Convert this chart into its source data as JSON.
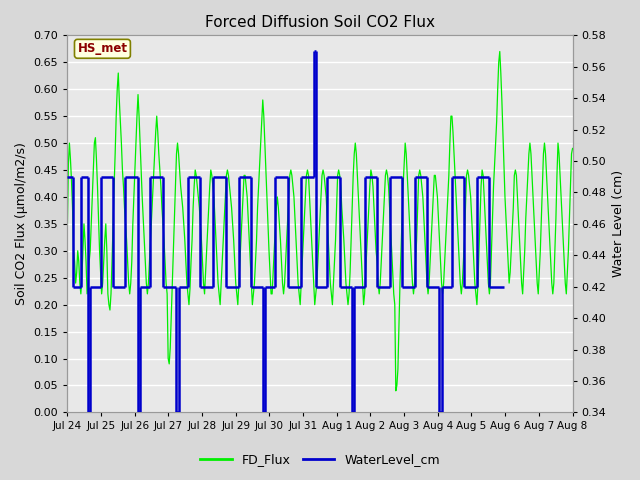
{
  "title": "Forced Diffusion Soil CO2 Flux",
  "ylabel_left": "Soil CO2 Flux (μmol/m2/s)",
  "ylabel_right": "Water Level (cm)",
  "annotation_text": "HS_met",
  "ylim_left": [
    0.0,
    0.7
  ],
  "ylim_right": [
    0.34,
    0.58
  ],
  "yticks_left": [
    0.0,
    0.05,
    0.1,
    0.15,
    0.2,
    0.25,
    0.3,
    0.35,
    0.4,
    0.45,
    0.5,
    0.55,
    0.6,
    0.65,
    0.7
  ],
  "yticks_right": [
    0.34,
    0.36,
    0.38,
    0.4,
    0.42,
    0.44,
    0.46,
    0.48,
    0.5,
    0.52,
    0.54,
    0.56,
    0.58
  ],
  "xtick_labels": [
    "Jul 24",
    "Jul 25",
    "Jul 26",
    "Jul 27",
    "Jul 28",
    "Jul 29",
    "Jul 30",
    "Jul 31",
    "Aug 1",
    "Aug 2",
    "Aug 3",
    "Aug 4",
    "Aug 5",
    "Aug 6",
    "Aug 7",
    "Aug 8"
  ],
  "fig_bg_color": "#d8d8d8",
  "plot_bg_color": "#e8e8e8",
  "grid_color": "#ffffff",
  "line_green": "#00ee00",
  "line_blue": "#0000cc",
  "legend_labels": [
    "FD_Flux",
    "WaterLevel_cm"
  ],
  "fd_flux": [
    0.34,
    0.46,
    0.5,
    0.47,
    0.43,
    0.38,
    0.3,
    0.28,
    0.24,
    0.26,
    0.3,
    0.28,
    0.24,
    0.22,
    0.25,
    0.3,
    0.35,
    0.32,
    0.28,
    0.22,
    0.24,
    0.28,
    0.3,
    0.35,
    0.4,
    0.45,
    0.5,
    0.51,
    0.47,
    0.42,
    0.36,
    0.3,
    0.26,
    0.22,
    0.24,
    0.28,
    0.32,
    0.35,
    0.3,
    0.22,
    0.2,
    0.19,
    0.22,
    0.28,
    0.35,
    0.42,
    0.48,
    0.55,
    0.6,
    0.63,
    0.58,
    0.54,
    0.5,
    0.45,
    0.42,
    0.38,
    0.35,
    0.32,
    0.28,
    0.24,
    0.22,
    0.24,
    0.28,
    0.35,
    0.4,
    0.45,
    0.5,
    0.55,
    0.59,
    0.55,
    0.5,
    0.45,
    0.4,
    0.36,
    0.32,
    0.28,
    0.24,
    0.22,
    0.24,
    0.28,
    0.32,
    0.36,
    0.4,
    0.44,
    0.48,
    0.52,
    0.55,
    0.52,
    0.48,
    0.45,
    0.42,
    0.38,
    0.35,
    0.32,
    0.28,
    0.24,
    0.22,
    0.1,
    0.09,
    0.12,
    0.18,
    0.24,
    0.3,
    0.36,
    0.42,
    0.48,
    0.5,
    0.48,
    0.45,
    0.42,
    0.4,
    0.38,
    0.35,
    0.32,
    0.28,
    0.24,
    0.22,
    0.2,
    0.23,
    0.28,
    0.32,
    0.38,
    0.42,
    0.45,
    0.44,
    0.42,
    0.4,
    0.38,
    0.35,
    0.32,
    0.28,
    0.24,
    0.22,
    0.26,
    0.3,
    0.34,
    0.38,
    0.42,
    0.45,
    0.44,
    0.42,
    0.4,
    0.36,
    0.32,
    0.28,
    0.24,
    0.22,
    0.2,
    0.24,
    0.28,
    0.32,
    0.36,
    0.4,
    0.44,
    0.45,
    0.44,
    0.42,
    0.4,
    0.38,
    0.35,
    0.32,
    0.28,
    0.24,
    0.22,
    0.2,
    0.24,
    0.28,
    0.32,
    0.36,
    0.4,
    0.44,
    0.44,
    0.42,
    0.4,
    0.36,
    0.32,
    0.28,
    0.24,
    0.2,
    0.22,
    0.24,
    0.28,
    0.32,
    0.38,
    0.42,
    0.46,
    0.5,
    0.54,
    0.58,
    0.55,
    0.5,
    0.45,
    0.4,
    0.35,
    0.3,
    0.26,
    0.22,
    0.22,
    0.26,
    0.3,
    0.34,
    0.38,
    0.4,
    0.38,
    0.35,
    0.32,
    0.28,
    0.24,
    0.22,
    0.24,
    0.28,
    0.32,
    0.36,
    0.4,
    0.44,
    0.45,
    0.44,
    0.42,
    0.4,
    0.36,
    0.32,
    0.28,
    0.24,
    0.22,
    0.2,
    0.24,
    0.28,
    0.32,
    0.36,
    0.4,
    0.44,
    0.45,
    0.44,
    0.4,
    0.36,
    0.32,
    0.28,
    0.24,
    0.2,
    0.22,
    0.24,
    0.28,
    0.32,
    0.36,
    0.4,
    0.44,
    0.45,
    0.44,
    0.42,
    0.4,
    0.36,
    0.32,
    0.28,
    0.24,
    0.22,
    0.2,
    0.24,
    0.28,
    0.32,
    0.38,
    0.44,
    0.45,
    0.44,
    0.42,
    0.38,
    0.35,
    0.32,
    0.28,
    0.24,
    0.22,
    0.2,
    0.22,
    0.26,
    0.32,
    0.38,
    0.44,
    0.48,
    0.5,
    0.48,
    0.44,
    0.4,
    0.36,
    0.32,
    0.28,
    0.24,
    0.2,
    0.22,
    0.26,
    0.3,
    0.34,
    0.38,
    0.42,
    0.45,
    0.44,
    0.42,
    0.38,
    0.34,
    0.3,
    0.28,
    0.24,
    0.22,
    0.24,
    0.28,
    0.32,
    0.36,
    0.4,
    0.44,
    0.45,
    0.44,
    0.42,
    0.38,
    0.34,
    0.3,
    0.26,
    0.22,
    0.2,
    0.04,
    0.05,
    0.08,
    0.16,
    0.24,
    0.3,
    0.36,
    0.42,
    0.46,
    0.5,
    0.48,
    0.44,
    0.4,
    0.36,
    0.32,
    0.28,
    0.24,
    0.22,
    0.24,
    0.28,
    0.32,
    0.38,
    0.44,
    0.45,
    0.44,
    0.42,
    0.4,
    0.36,
    0.32,
    0.28,
    0.24,
    0.22,
    0.24,
    0.28,
    0.32,
    0.36,
    0.4,
    0.44,
    0.44,
    0.42,
    0.4,
    0.36,
    0.32,
    0.28,
    0.24,
    0.22,
    0.24,
    0.28,
    0.32,
    0.36,
    0.4,
    0.44,
    0.5,
    0.55,
    0.55,
    0.52,
    0.48,
    0.44,
    0.4,
    0.36,
    0.32,
    0.28,
    0.24,
    0.22,
    0.24,
    0.28,
    0.32,
    0.38,
    0.44,
    0.45,
    0.44,
    0.42,
    0.4,
    0.36,
    0.32,
    0.28,
    0.24,
    0.22,
    0.2,
    0.24,
    0.3,
    0.36,
    0.42,
    0.45,
    0.44,
    0.4,
    0.36,
    0.32,
    0.28,
    0.24,
    0.22,
    0.24,
    0.3,
    0.36,
    0.42,
    0.46,
    0.5,
    0.54,
    0.6,
    0.65,
    0.67,
    0.63,
    0.58,
    0.52,
    0.46,
    0.4,
    0.36,
    0.32,
    0.28,
    0.24,
    0.26,
    0.3,
    0.34,
    0.38,
    0.44,
    0.45,
    0.44,
    0.4,
    0.36,
    0.32,
    0.28,
    0.24,
    0.22,
    0.26,
    0.3,
    0.36,
    0.4,
    0.44,
    0.48,
    0.5,
    0.48,
    0.44,
    0.4,
    0.36,
    0.32,
    0.28,
    0.24,
    0.22,
    0.26,
    0.3,
    0.36,
    0.42,
    0.48,
    0.5,
    0.48,
    0.44,
    0.4,
    0.36,
    0.32,
    0.28,
    0.24,
    0.22,
    0.24,
    0.3,
    0.36,
    0.44,
    0.5,
    0.48,
    0.44,
    0.4,
    0.36,
    0.32,
    0.28,
    0.24,
    0.22,
    0.26,
    0.3,
    0.36,
    0.42,
    0.48,
    0.49
  ],
  "water_level_segments": [
    {
      "x": [
        0,
        5
      ],
      "y": [
        0.49,
        0.49
      ]
    },
    {
      "x": [
        5,
        5
      ],
      "y": [
        0.49,
        0.42
      ]
    },
    {
      "x": [
        5,
        13
      ],
      "y": [
        0.42,
        0.42
      ]
    },
    {
      "x": [
        13,
        13
      ],
      "y": [
        0.42,
        0.49
      ]
    },
    {
      "x": [
        13,
        20
      ],
      "y": [
        0.49,
        0.49
      ]
    },
    {
      "x": [
        20,
        20
      ],
      "y": [
        0.49,
        0.34
      ]
    },
    {
      "x": [
        20,
        22
      ],
      "y": [
        0.34,
        0.34
      ]
    },
    {
      "x": [
        22,
        22
      ],
      "y": [
        0.34,
        0.42
      ]
    },
    {
      "x": [
        22,
        32
      ],
      "y": [
        0.42,
        0.42
      ]
    },
    {
      "x": [
        32,
        32
      ],
      "y": [
        0.42,
        0.49
      ]
    },
    {
      "x": [
        32,
        44
      ],
      "y": [
        0.49,
        0.49
      ]
    },
    {
      "x": [
        44,
        44
      ],
      "y": [
        0.49,
        0.42
      ]
    },
    {
      "x": [
        44,
        55
      ],
      "y": [
        0.42,
        0.42
      ]
    },
    {
      "x": [
        55,
        55
      ],
      "y": [
        0.42,
        0.49
      ]
    },
    {
      "x": [
        55,
        68
      ],
      "y": [
        0.49,
        0.49
      ]
    },
    {
      "x": [
        68,
        68
      ],
      "y": [
        0.49,
        0.34
      ]
    },
    {
      "x": [
        68,
        70
      ],
      "y": [
        0.34,
        0.34
      ]
    },
    {
      "x": [
        70,
        70
      ],
      "y": [
        0.34,
        0.42
      ]
    },
    {
      "x": [
        70,
        80
      ],
      "y": [
        0.42,
        0.42
      ]
    },
    {
      "x": [
        80,
        80
      ],
      "y": [
        0.42,
        0.49
      ]
    },
    {
      "x": [
        80,
        92
      ],
      "y": [
        0.49,
        0.49
      ]
    },
    {
      "x": [
        92,
        92
      ],
      "y": [
        0.49,
        0.42
      ]
    },
    {
      "x": [
        92,
        105
      ],
      "y": [
        0.42,
        0.42
      ]
    },
    {
      "x": [
        105,
        105
      ],
      "y": [
        0.42,
        0.34
      ]
    },
    {
      "x": [
        105,
        107
      ],
      "y": [
        0.34,
        0.34
      ]
    },
    {
      "x": [
        107,
        107
      ],
      "y": [
        0.34,
        0.42
      ]
    },
    {
      "x": [
        107,
        116
      ],
      "y": [
        0.42,
        0.42
      ]
    },
    {
      "x": [
        116,
        116
      ],
      "y": [
        0.42,
        0.49
      ]
    },
    {
      "x": [
        116,
        128
      ],
      "y": [
        0.49,
        0.49
      ]
    },
    {
      "x": [
        128,
        128
      ],
      "y": [
        0.49,
        0.42
      ]
    },
    {
      "x": [
        128,
        140
      ],
      "y": [
        0.42,
        0.42
      ]
    },
    {
      "x": [
        140,
        140
      ],
      "y": [
        0.42,
        0.49
      ]
    },
    {
      "x": [
        140,
        153
      ],
      "y": [
        0.49,
        0.49
      ]
    },
    {
      "x": [
        153,
        153
      ],
      "y": [
        0.49,
        0.42
      ]
    },
    {
      "x": [
        153,
        165
      ],
      "y": [
        0.42,
        0.42
      ]
    },
    {
      "x": [
        165,
        165
      ],
      "y": [
        0.42,
        0.49
      ]
    },
    {
      "x": [
        165,
        177
      ],
      "y": [
        0.49,
        0.49
      ]
    },
    {
      "x": [
        177,
        177
      ],
      "y": [
        0.49,
        0.42
      ]
    },
    {
      "x": [
        177,
        188
      ],
      "y": [
        0.42,
        0.42
      ]
    },
    {
      "x": [
        188,
        188
      ],
      "y": [
        0.42,
        0.34
      ]
    },
    {
      "x": [
        188,
        190
      ],
      "y": [
        0.34,
        0.34
      ]
    },
    {
      "x": [
        190,
        190
      ],
      "y": [
        0.34,
        0.42
      ]
    },
    {
      "x": [
        190,
        200
      ],
      "y": [
        0.42,
        0.42
      ]
    },
    {
      "x": [
        200,
        200
      ],
      "y": [
        0.42,
        0.49
      ]
    },
    {
      "x": [
        200,
        212
      ],
      "y": [
        0.49,
        0.49
      ]
    },
    {
      "x": [
        212,
        212
      ],
      "y": [
        0.49,
        0.42
      ]
    },
    {
      "x": [
        212,
        225
      ],
      "y": [
        0.42,
        0.42
      ]
    },
    {
      "x": [
        225,
        225
      ],
      "y": [
        0.42,
        0.49
      ]
    },
    {
      "x": [
        225,
        237
      ],
      "y": [
        0.49,
        0.49
      ]
    },
    {
      "x": [
        237,
        237
      ],
      "y": [
        0.49,
        0.57
      ]
    },
    {
      "x": [
        237,
        239
      ],
      "y": [
        0.57,
        0.57
      ]
    },
    {
      "x": [
        239,
        239
      ],
      "y": [
        0.57,
        0.42
      ]
    },
    {
      "x": [
        239,
        250
      ],
      "y": [
        0.42,
        0.42
      ]
    },
    {
      "x": [
        250,
        250
      ],
      "y": [
        0.42,
        0.49
      ]
    },
    {
      "x": [
        250,
        262
      ],
      "y": [
        0.49,
        0.49
      ]
    },
    {
      "x": [
        262,
        262
      ],
      "y": [
        0.49,
        0.42
      ]
    },
    {
      "x": [
        262,
        274
      ],
      "y": [
        0.42,
        0.42
      ]
    },
    {
      "x": [
        274,
        274
      ],
      "y": [
        0.42,
        0.34
      ]
    },
    {
      "x": [
        274,
        276
      ],
      "y": [
        0.34,
        0.34
      ]
    },
    {
      "x": [
        276,
        276
      ],
      "y": [
        0.34,
        0.42
      ]
    },
    {
      "x": [
        276,
        286
      ],
      "y": [
        0.42,
        0.42
      ]
    },
    {
      "x": [
        286,
        286
      ],
      "y": [
        0.42,
        0.49
      ]
    },
    {
      "x": [
        286,
        298
      ],
      "y": [
        0.49,
        0.49
      ]
    },
    {
      "x": [
        298,
        298
      ],
      "y": [
        0.49,
        0.42
      ]
    },
    {
      "x": [
        298,
        310
      ],
      "y": [
        0.42,
        0.42
      ]
    },
    {
      "x": [
        310,
        310
      ],
      "y": [
        0.42,
        0.49
      ]
    },
    {
      "x": [
        310,
        322
      ],
      "y": [
        0.49,
        0.49
      ]
    },
    {
      "x": [
        322,
        322
      ],
      "y": [
        0.49,
        0.42
      ]
    },
    {
      "x": [
        322,
        334
      ],
      "y": [
        0.42,
        0.42
      ]
    },
    {
      "x": [
        334,
        334
      ],
      "y": [
        0.42,
        0.49
      ]
    },
    {
      "x": [
        334,
        346
      ],
      "y": [
        0.49,
        0.49
      ]
    },
    {
      "x": [
        346,
        346
      ],
      "y": [
        0.49,
        0.42
      ]
    },
    {
      "x": [
        346,
        358
      ],
      "y": [
        0.42,
        0.42
      ]
    },
    {
      "x": [
        358,
        358
      ],
      "y": [
        0.42,
        0.34
      ]
    },
    {
      "x": [
        358,
        360
      ],
      "y": [
        0.34,
        0.34
      ]
    },
    {
      "x": [
        360,
        360
      ],
      "y": [
        0.34,
        0.42
      ]
    },
    {
      "x": [
        360,
        370
      ],
      "y": [
        0.42,
        0.42
      ]
    },
    {
      "x": [
        370,
        370
      ],
      "y": [
        0.42,
        0.49
      ]
    },
    {
      "x": [
        370,
        382
      ],
      "y": [
        0.49,
        0.49
      ]
    },
    {
      "x": [
        382,
        382
      ],
      "y": [
        0.49,
        0.42
      ]
    },
    {
      "x": [
        382,
        394
      ],
      "y": [
        0.42,
        0.42
      ]
    },
    {
      "x": [
        394,
        394
      ],
      "y": [
        0.42,
        0.49
      ]
    },
    {
      "x": [
        394,
        406
      ],
      "y": [
        0.49,
        0.49
      ]
    },
    {
      "x": [
        406,
        406
      ],
      "y": [
        0.49,
        0.42
      ]
    },
    {
      "x": [
        406,
        420
      ],
      "y": [
        0.42,
        0.42
      ]
    }
  ]
}
